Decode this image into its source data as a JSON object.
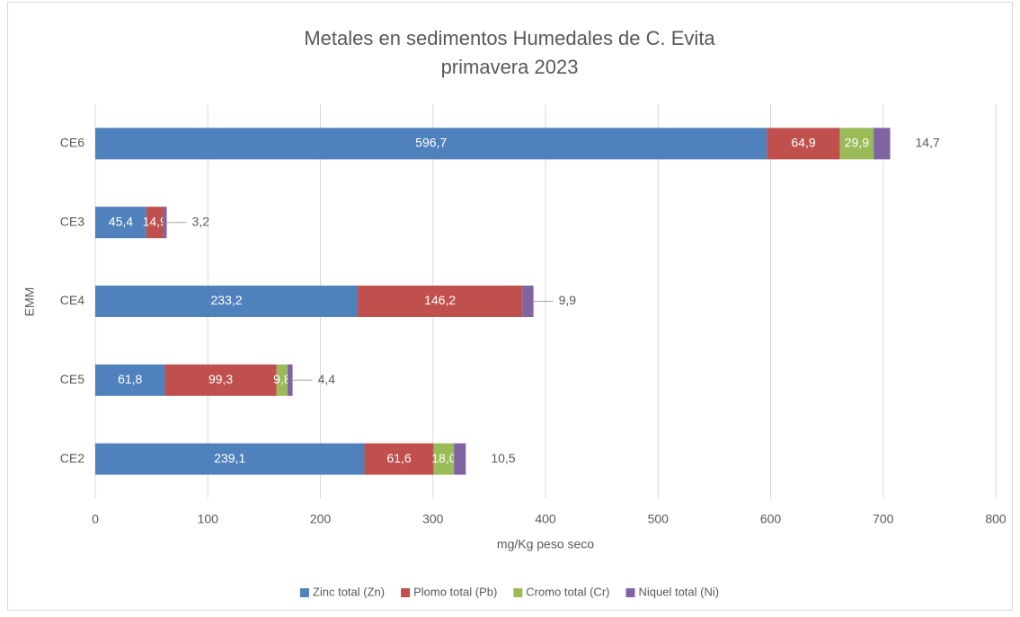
{
  "chart_data": {
    "type": "stacked_barh",
    "title_lines": [
      "Metales en sedimentos Humedales de C. Evita",
      "primavera 2023"
    ],
    "xlabel": "mg/Kg peso seco",
    "ylabel": "EMM",
    "categories": [
      "CE6",
      "CE3",
      "CE4",
      "CE5",
      "CE2"
    ],
    "series": [
      {
        "name": "Zinc total (Zn)",
        "color": "#4f81bd",
        "values": [
          596.7,
          45.4,
          233.2,
          61.8,
          239.1
        ],
        "value_labels": [
          "596,7",
          "45,4",
          "233,2",
          "61,8",
          "239,1"
        ]
      },
      {
        "name": "Plomo total (Pb)",
        "color": "#c0504d",
        "values": [
          64.9,
          14.9,
          146.2,
          99.3,
          61.6
        ],
        "value_labels": [
          "64,9",
          "14,9",
          "146,2",
          "99,3",
          "61,6"
        ]
      },
      {
        "name": "Cromo total (Cr)",
        "color": "#9bbb59",
        "values": [
          29.9,
          null,
          null,
          9.8,
          18.0
        ],
        "value_labels": [
          "29,9",
          null,
          null,
          "9,8",
          "18,0"
        ]
      },
      {
        "name": "Niquel total (Ni)",
        "color": "#8064a2",
        "values": [
          14.7,
          3.2,
          9.9,
          4.4,
          10.5
        ],
        "value_labels": [
          "14,7",
          "3,2",
          "9,9",
          "4,4",
          "10,5"
        ]
      }
    ],
    "xlim": [
      0,
      800
    ],
    "xticks": [
      0,
      100,
      200,
      300,
      400,
      500,
      600,
      700,
      800
    ],
    "grid": true,
    "legend": "bottom"
  }
}
